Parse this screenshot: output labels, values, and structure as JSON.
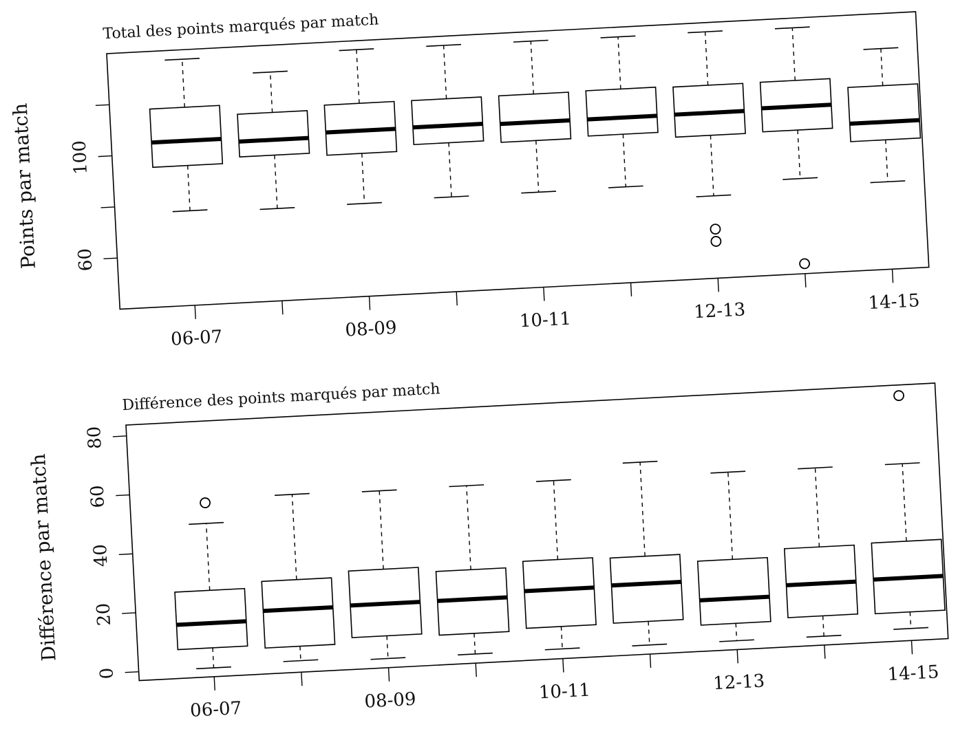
{
  "chart_data": [
    {
      "type": "box",
      "title": "Total des points marqués par match",
      "y_label": "Points par match",
      "categories": [
        "06-07",
        null,
        "08-09",
        null,
        "10-11",
        null,
        "12-13",
        null,
        "14-15"
      ],
      "ylim": [
        40,
        140
      ],
      "yticks": [
        60,
        100
      ],
      "yticks_unlabeled": [
        80,
        120
      ],
      "boxes": [
        {
          "whisker_low": 77.0,
          "q1": 94.7,
          "median": 104.4,
          "q3": 117.5,
          "whisker_high": 136.3
        },
        {
          "whisker_low": 76.1,
          "q1": 97.0,
          "median": 103.0,
          "q3": 113.7,
          "whisker_high": 129.5
        },
        {
          "whisker_low": 76.3,
          "q1": 95.9,
          "median": 104.8,
          "q3": 115.5,
          "whisker_high": 136.5
        },
        {
          "whisker_low": 77.1,
          "q1": 98.3,
          "median": 105.0,
          "q3": 115.5,
          "whisker_high": 136.4
        },
        {
          "whisker_low": 77.2,
          "q1": 97.4,
          "median": 104.6,
          "q3": 115.6,
          "whisker_high": 136.3
        },
        {
          "whisker_low": 77.5,
          "q1": 98.1,
          "median": 104.6,
          "q3": 115.8,
          "whisker_high": 136.2
        },
        {
          "whisker_low": 72.2,
          "q1": 95.9,
          "median": 104.7,
          "q3": 115.5,
          "whisker_high": 136.4,
          "outliers": [
            59.2,
            54.4
          ]
        },
        {
          "whisker_low": 77.2,
          "q1": 96.2,
          "median": 105.4,
          "q3": 115.6,
          "whisker_high": 136.2,
          "outliers": [
            43.9
          ]
        },
        {
          "whisker_low": 74.2,
          "q1": 90.6,
          "median": 97.6,
          "q3": 111.8,
          "whisker_high": 126.3
        }
      ]
    },
    {
      "type": "box",
      "title": "Différence des points marqués par match",
      "y_label": "Différence  par match",
      "categories": [
        "06-07",
        null,
        "08-09",
        null,
        "10-11",
        null,
        "12-13",
        null,
        "14-15"
      ],
      "ylim": [
        -3,
        83.7
      ],
      "yticks": [
        0,
        20,
        40,
        60,
        80
      ],
      "boxes": [
        {
          "whisker_low": 0,
          "q1": 6.8,
          "median": 15.2,
          "q3": 26.3,
          "whisker_high": 49,
          "outliers": [
            56
          ]
        },
        {
          "whisker_low": 0.9,
          "q1": 5.8,
          "median": 18.4,
          "q3": 28.4,
          "whisker_high": 57.3
        },
        {
          "whisker_low": 0.1,
          "q1": 7.8,
          "median": 18.7,
          "q3": 30.4,
          "whisker_high": 57
        },
        {
          "whisker_low": 0.1,
          "q1": 7.1,
          "median": 18.7,
          "q3": 28.7,
          "whisker_high": 57.2
        },
        {
          "whisker_low": 0.3,
          "q1": 7.9,
          "median": 20.5,
          "q3": 30.6,
          "whisker_high": 57.4
        },
        {
          "whisker_low": 0.1,
          "q1": 8.1,
          "median": 20.9,
          "q3": 30.2,
          "whisker_high": 62.1
        },
        {
          "whisker_low": 0,
          "q1": 5.9,
          "median": 14.3,
          "q3": 27.6,
          "whisker_high": 57.2
        },
        {
          "whisker_low": 0,
          "q1": 6.9,
          "median": 17.9,
          "q3": 30.3,
          "whisker_high": 57.1
        },
        {
          "whisker_low": 1.1,
          "q1": 6.7,
          "median": 18.3,
          "q3": 30.7,
          "whisker_high": 57,
          "outliers": [
            80.1
          ]
        }
      ]
    }
  ]
}
